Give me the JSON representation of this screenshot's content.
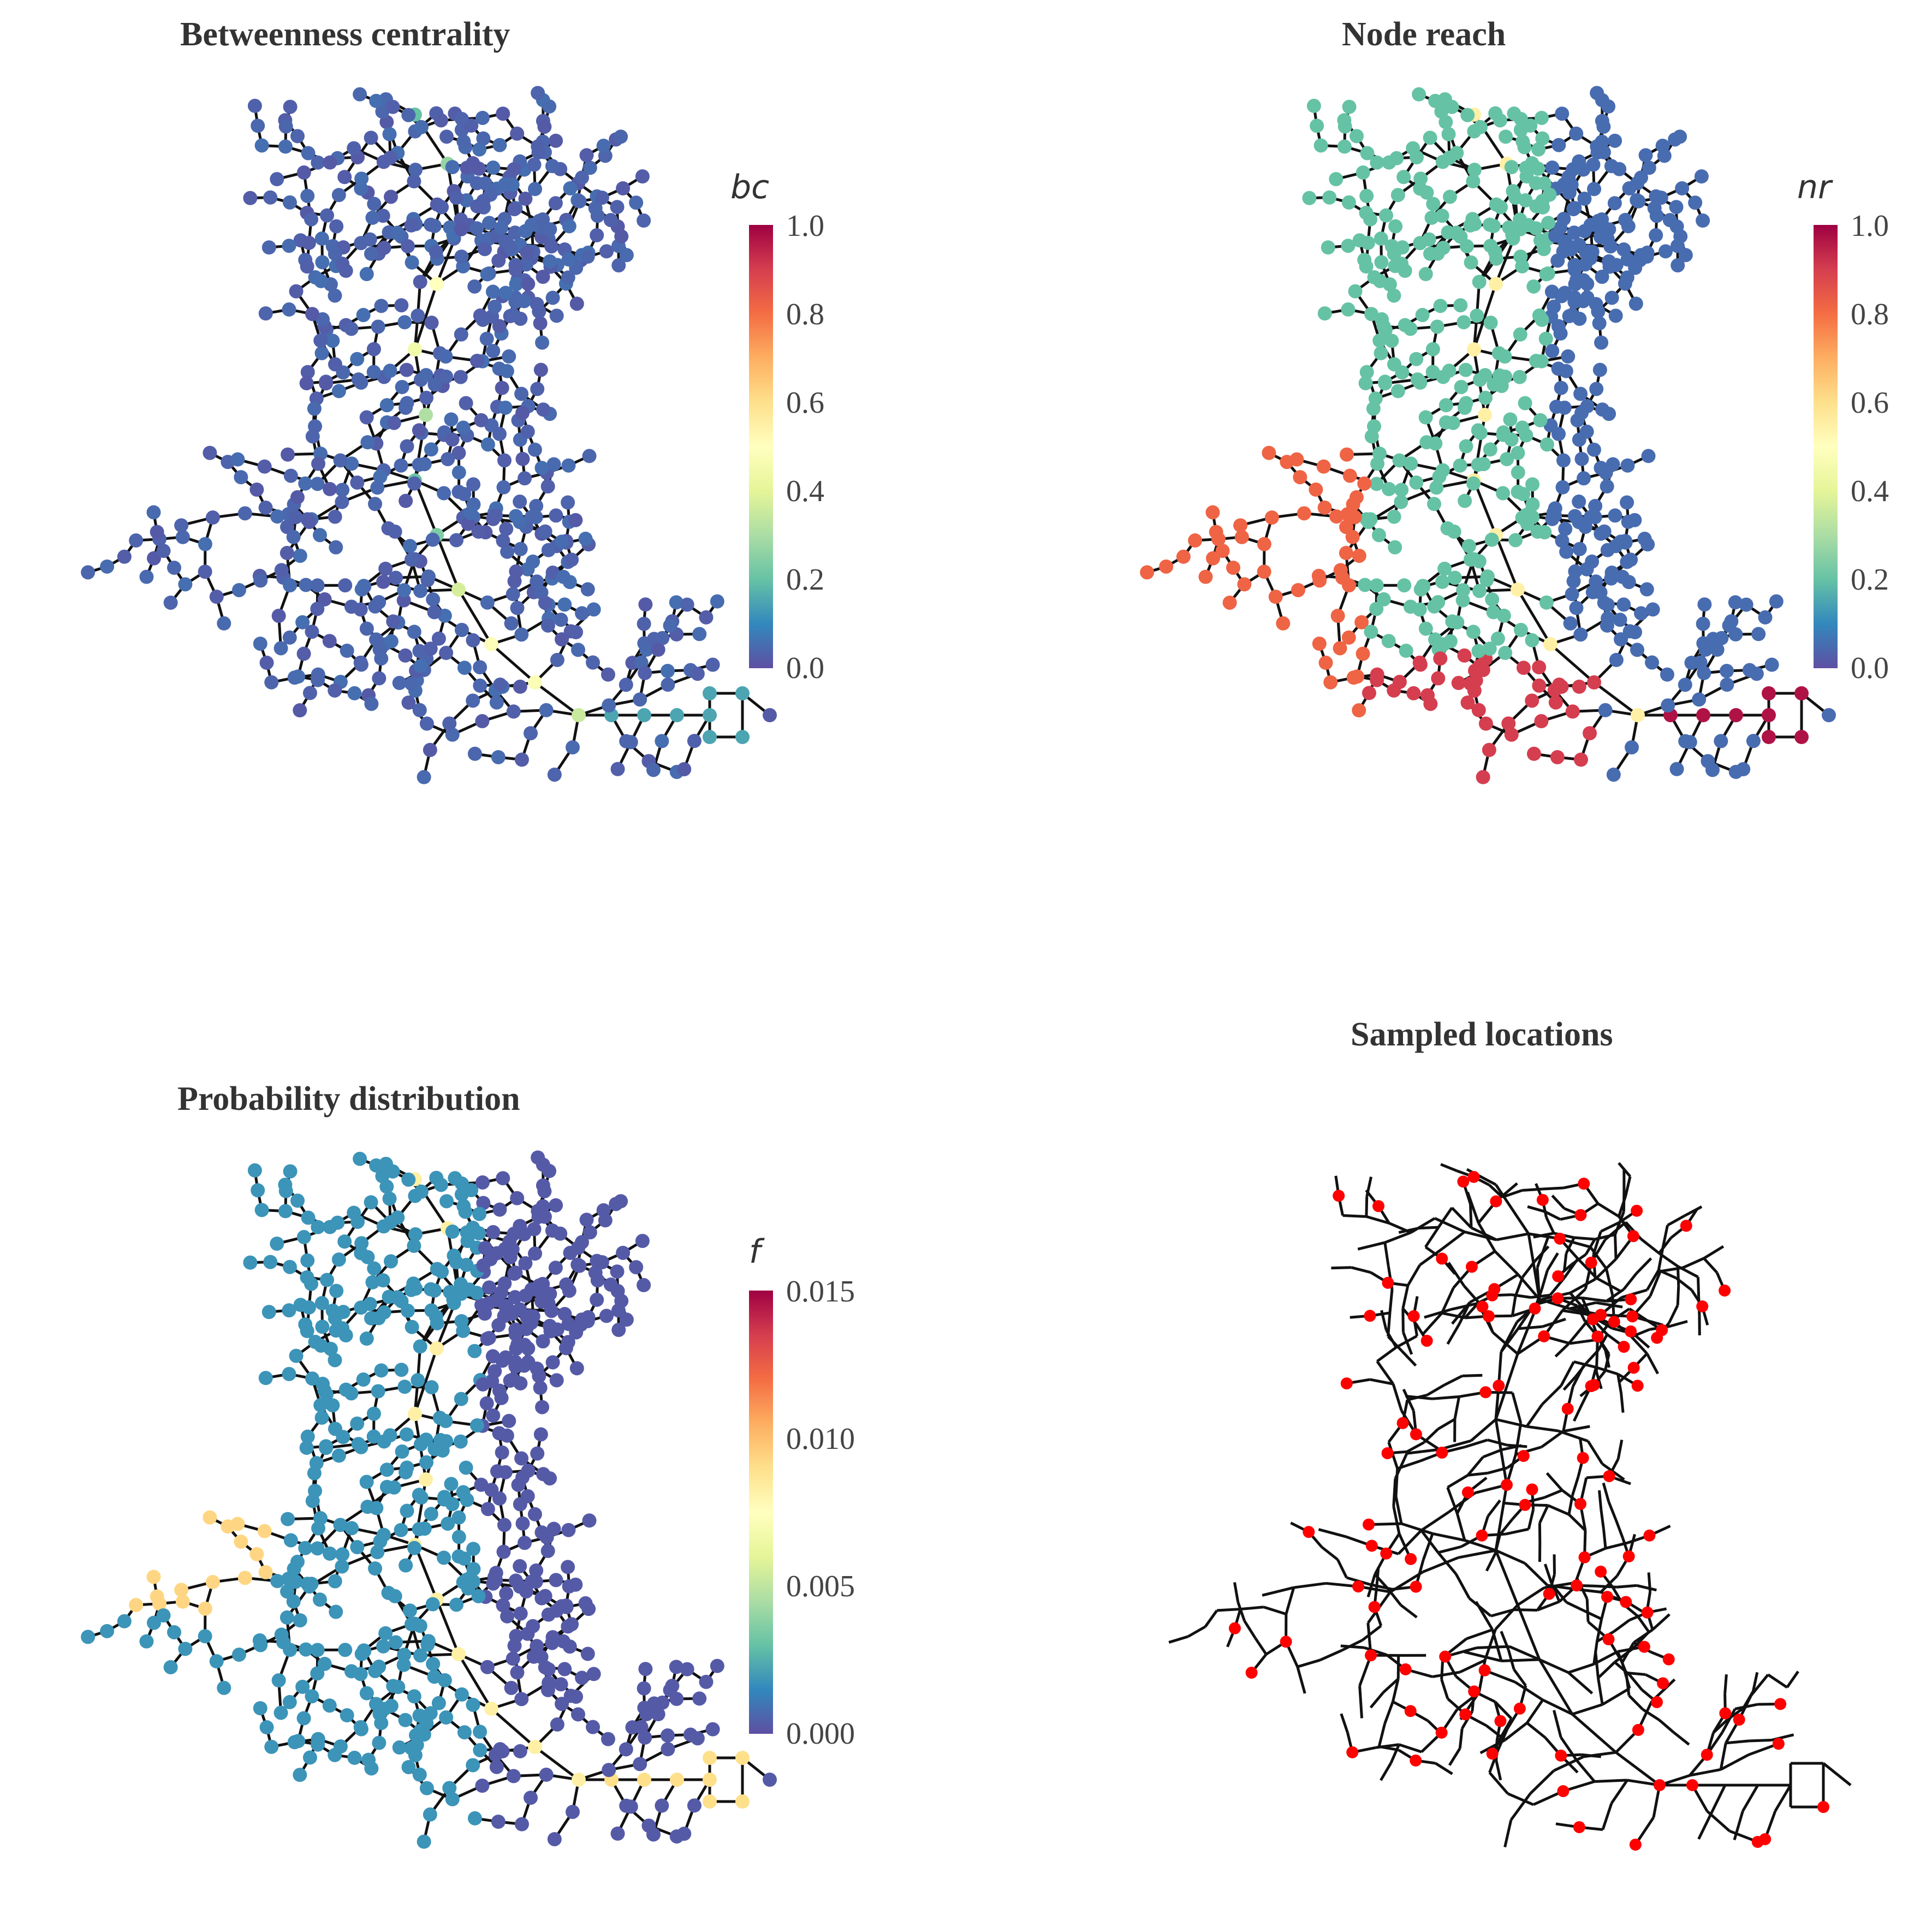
{
  "panels": [
    {
      "id": "betweenness",
      "title": "Betweenness centrality",
      "colorbar": {
        "label": "bc",
        "ticks": [
          "1.0",
          "0.8",
          "0.6",
          "0.4",
          "0.2",
          "0.0"
        ]
      },
      "colormap": "Spectral"
    },
    {
      "id": "reach",
      "title": "Node reach",
      "colorbar": {
        "label": "nr",
        "ticks": [
          "1.0",
          "0.8",
          "0.6",
          "0.4",
          "0.2",
          "0.0"
        ]
      },
      "colormap": "Spectral"
    },
    {
      "id": "probability",
      "title": "Probability distribution",
      "colorbar": {
        "label": "f",
        "ticks": [
          "0.015",
          "0.010",
          "0.005",
          "0.000"
        ]
      },
      "colormap": "Spectral"
    },
    {
      "id": "sampled",
      "title": "Sampled locations",
      "marker_color": "#ff0000"
    }
  ],
  "colors": {
    "edge": "#111111",
    "marker": "#ff0000",
    "colormap_stops": [
      "#5e4fa2",
      "#3288bd",
      "#66c2a5",
      "#abdda4",
      "#e6f598",
      "#ffffbf",
      "#fee08b",
      "#fdae61",
      "#f46d43",
      "#d53e4f",
      "#9e0142"
    ]
  }
}
